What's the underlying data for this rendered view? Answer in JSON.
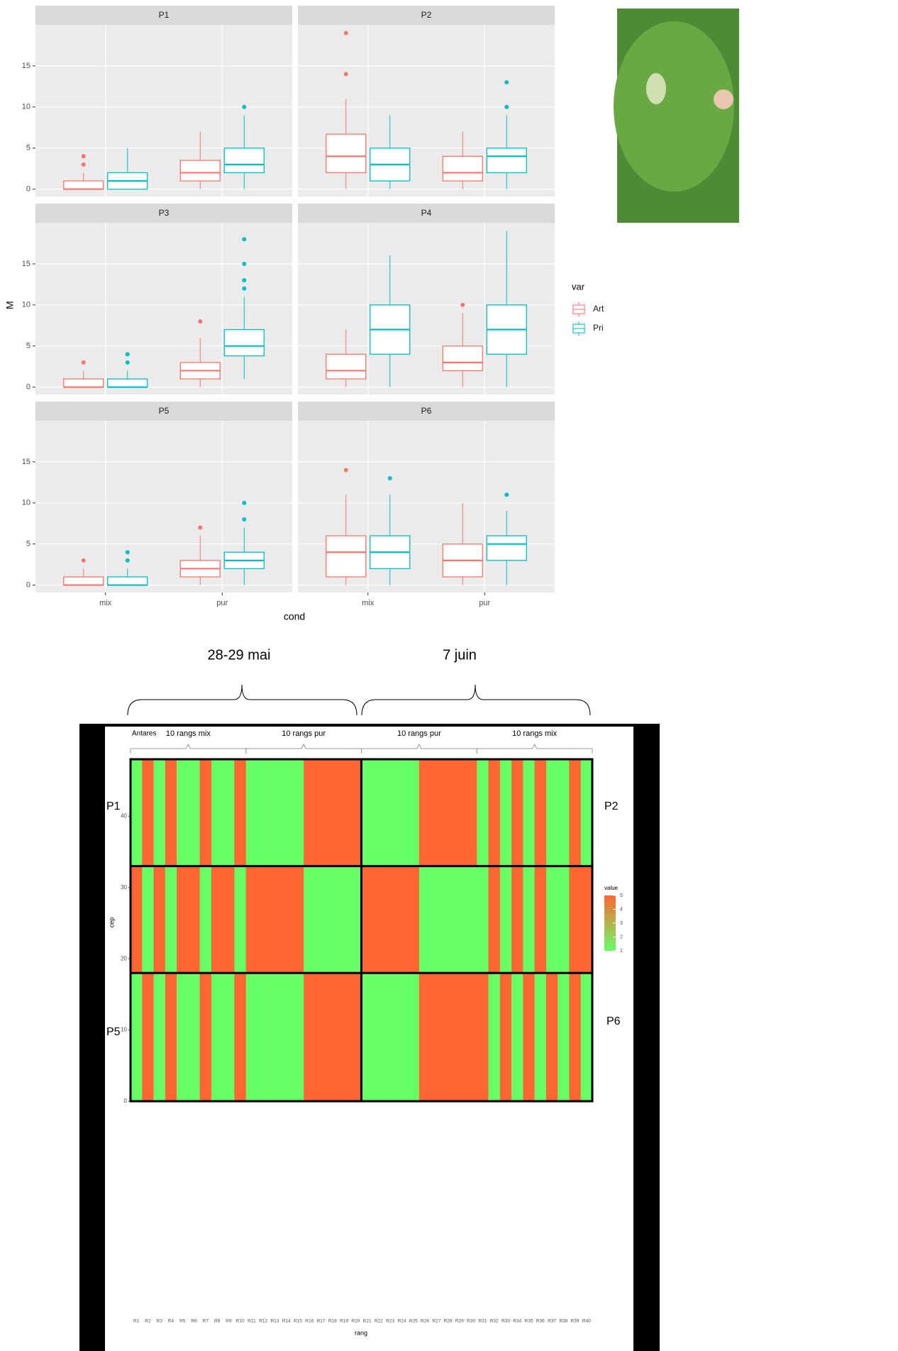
{
  "chart_data": [
    {
      "type": "boxplot",
      "y_label": "M",
      "x_label": "cond",
      "legend_title": "var",
      "categories": [
        "mix",
        "pur"
      ],
      "series": [
        {
          "name": "Art",
          "color": "#F8766D"
        },
        {
          "name": "Pri",
          "color": "#00BFC4"
        }
      ],
      "ylim": [
        -0.9,
        20
      ],
      "yticks": [
        0,
        5,
        10,
        15
      ],
      "grid": true,
      "panels": [
        {
          "title": "P1",
          "boxes": [
            [
              {
                "min": 0,
                "q1": 0,
                "median": 0,
                "q3": 1,
                "max": 2,
                "outliers": [
                  3,
                  4
                ]
              },
              {
                "min": 0,
                "q1": 1,
                "median": 2,
                "q3": 3.5,
                "max": 7,
                "outliers": []
              }
            ],
            [
              {
                "min": 0,
                "q1": 0,
                "median": 1,
                "q3": 2,
                "max": 5,
                "outliers": []
              },
              {
                "min": 0,
                "q1": 2,
                "median": 3,
                "q3": 5,
                "max": 9,
                "outliers": [
                  10
                ]
              }
            ]
          ]
        },
        {
          "title": "P2",
          "boxes": [
            [
              {
                "min": 0,
                "q1": 2,
                "median": 4,
                "q3": 6.7,
                "max": 11,
                "outliers": [
                  14,
                  19
                ]
              },
              {
                "min": 0,
                "q1": 1,
                "median": 2,
                "q3": 4,
                "max": 7,
                "outliers": []
              }
            ],
            [
              {
                "min": 0,
                "q1": 1,
                "median": 3,
                "q3": 5,
                "max": 9,
                "outliers": []
              },
              {
                "min": 0,
                "q1": 2,
                "median": 4,
                "q3": 5,
                "max": 9,
                "outliers": [
                  10,
                  13
                ]
              }
            ]
          ]
        },
        {
          "title": "P3",
          "boxes": [
            [
              {
                "min": 0,
                "q1": 0,
                "median": 0,
                "q3": 1,
                "max": 2,
                "outliers": [
                  3
                ]
              },
              {
                "min": 0,
                "q1": 1,
                "median": 2,
                "q3": 3,
                "max": 6,
                "outliers": [
                  8
                ]
              }
            ],
            [
              {
                "min": 0,
                "q1": 0,
                "median": 0,
                "q3": 1,
                "max": 2,
                "outliers": [
                  3,
                  4
                ]
              },
              {
                "min": 1,
                "q1": 3.8,
                "median": 5,
                "q3": 7,
                "max": 11,
                "outliers": [
                  12,
                  13,
                  15,
                  18
                ]
              }
            ]
          ]
        },
        {
          "title": "P4",
          "boxes": [
            [
              {
                "min": 0,
                "q1": 1,
                "median": 2,
                "q3": 4,
                "max": 7,
                "outliers": []
              },
              {
                "min": 0,
                "q1": 2,
                "median": 3,
                "q3": 5,
                "max": 9,
                "outliers": [
                  10
                ]
              }
            ],
            [
              {
                "min": 0,
                "q1": 4,
                "median": 7,
                "q3": 10,
                "max": 16,
                "outliers": []
              },
              {
                "min": 0,
                "q1": 4,
                "median": 7,
                "q3": 10,
                "max": 19,
                "outliers": []
              }
            ]
          ]
        },
        {
          "title": "P5",
          "boxes": [
            [
              {
                "min": 0,
                "q1": 0,
                "median": 0,
                "q3": 1,
                "max": 2,
                "outliers": [
                  3
                ]
              },
              {
                "min": 0,
                "q1": 1,
                "median": 2,
                "q3": 3,
                "max": 6,
                "outliers": [
                  7
                ]
              }
            ],
            [
              {
                "min": 0,
                "q1": 0,
                "median": 0,
                "q3": 1,
                "max": 2,
                "outliers": [
                  3,
                  4
                ]
              },
              {
                "min": 0,
                "q1": 2,
                "median": 3,
                "q3": 4,
                "max": 7,
                "outliers": [
                  8,
                  10
                ]
              }
            ]
          ]
        },
        {
          "title": "P6",
          "boxes": [
            [
              {
                "min": 0,
                "q1": 1,
                "median": 4,
                "q3": 6,
                "max": 11,
                "outliers": [
                  14
                ]
              },
              {
                "min": 0,
                "q1": 1,
                "median": 3,
                "q3": 5,
                "max": 10,
                "outliers": []
              }
            ],
            [
              {
                "min": 0,
                "q1": 2,
                "median": 4,
                "q3": 6,
                "max": 11,
                "outliers": [
                  13
                ]
              },
              {
                "min": 0,
                "q1": 3,
                "median": 5,
                "q3": 6,
                "max": 9,
                "outliers": [
                  11
                ]
              }
            ]
          ]
        }
      ]
    },
    {
      "type": "heatmap",
      "x_label": "rang",
      "y_label": "cep",
      "legend_title": "value",
      "categories": [
        "R1",
        "R2",
        "R3",
        "R4",
        "R5",
        "R6",
        "R7",
        "R8",
        "R9",
        "R10",
        "R11",
        "R12",
        "R13",
        "R14",
        "R15",
        "R16",
        "R17",
        "R18",
        "R19",
        "R20",
        "R21",
        "R22",
        "R23",
        "R24",
        "R25",
        "R26",
        "R27",
        "R28",
        "R29",
        "R30",
        "R31",
        "R32",
        "R33",
        "R34",
        "R35",
        "R36",
        "R37",
        "R38",
        "R39",
        "R40"
      ],
      "ylim": [
        -0.5,
        48.5
      ],
      "yticks": [
        0,
        10,
        20,
        30,
        40
      ],
      "clim": [
        1,
        5
      ],
      "colorbar_ticks": [
        1,
        2,
        3,
        4,
        5
      ],
      "colors": [
        "#66ff66",
        "#ff6633"
      ],
      "annotation": "Antares",
      "groups": [
        {
          "label": "10 rangs mix",
          "first": "R1",
          "last": "R10"
        },
        {
          "label": "10 rangs pur",
          "first": "R11",
          "last": "R20"
        },
        {
          "label": "10 rangs pur",
          "first": "R21",
          "last": "R30"
        },
        {
          "label": "10 rangs mix",
          "first": "R31",
          "last": "R40"
        }
      ],
      "blocks": [
        {
          "from": 0,
          "to": 18,
          "values": [
            1,
            5,
            1,
            5,
            1,
            1,
            5,
            1,
            1,
            5,
            1,
            1,
            1,
            1,
            1,
            5,
            5,
            5,
            5,
            5,
            1,
            1,
            1,
            1,
            1,
            5,
            5,
            5,
            5,
            5,
            5,
            1,
            5,
            1,
            5,
            1,
            5,
            1,
            5,
            1
          ]
        },
        {
          "from": 18,
          "to": 33,
          "values": [
            5,
            1,
            5,
            1,
            5,
            5,
            1,
            5,
            5,
            1,
            5,
            5,
            5,
            5,
            5,
            1,
            1,
            1,
            1,
            1,
            5,
            5,
            5,
            5,
            5,
            1,
            1,
            1,
            1,
            1,
            1,
            5,
            1,
            5,
            1,
            5,
            1,
            1,
            5,
            5
          ]
        },
        {
          "from": 33,
          "to": 48,
          "values": [
            1,
            5,
            1,
            5,
            1,
            1,
            5,
            1,
            1,
            5,
            1,
            1,
            1,
            1,
            1,
            5,
            5,
            5,
            5,
            5,
            1,
            1,
            1,
            1,
            1,
            5,
            5,
            5,
            5,
            5,
            1,
            5,
            1,
            5,
            1,
            5,
            1,
            1,
            5,
            1
          ]
        }
      ]
    }
  ],
  "dates": [
    "28-29 mai",
    "7 juin"
  ],
  "plot_labels": [
    "P1",
    "P2",
    "P5",
    "P6"
  ]
}
